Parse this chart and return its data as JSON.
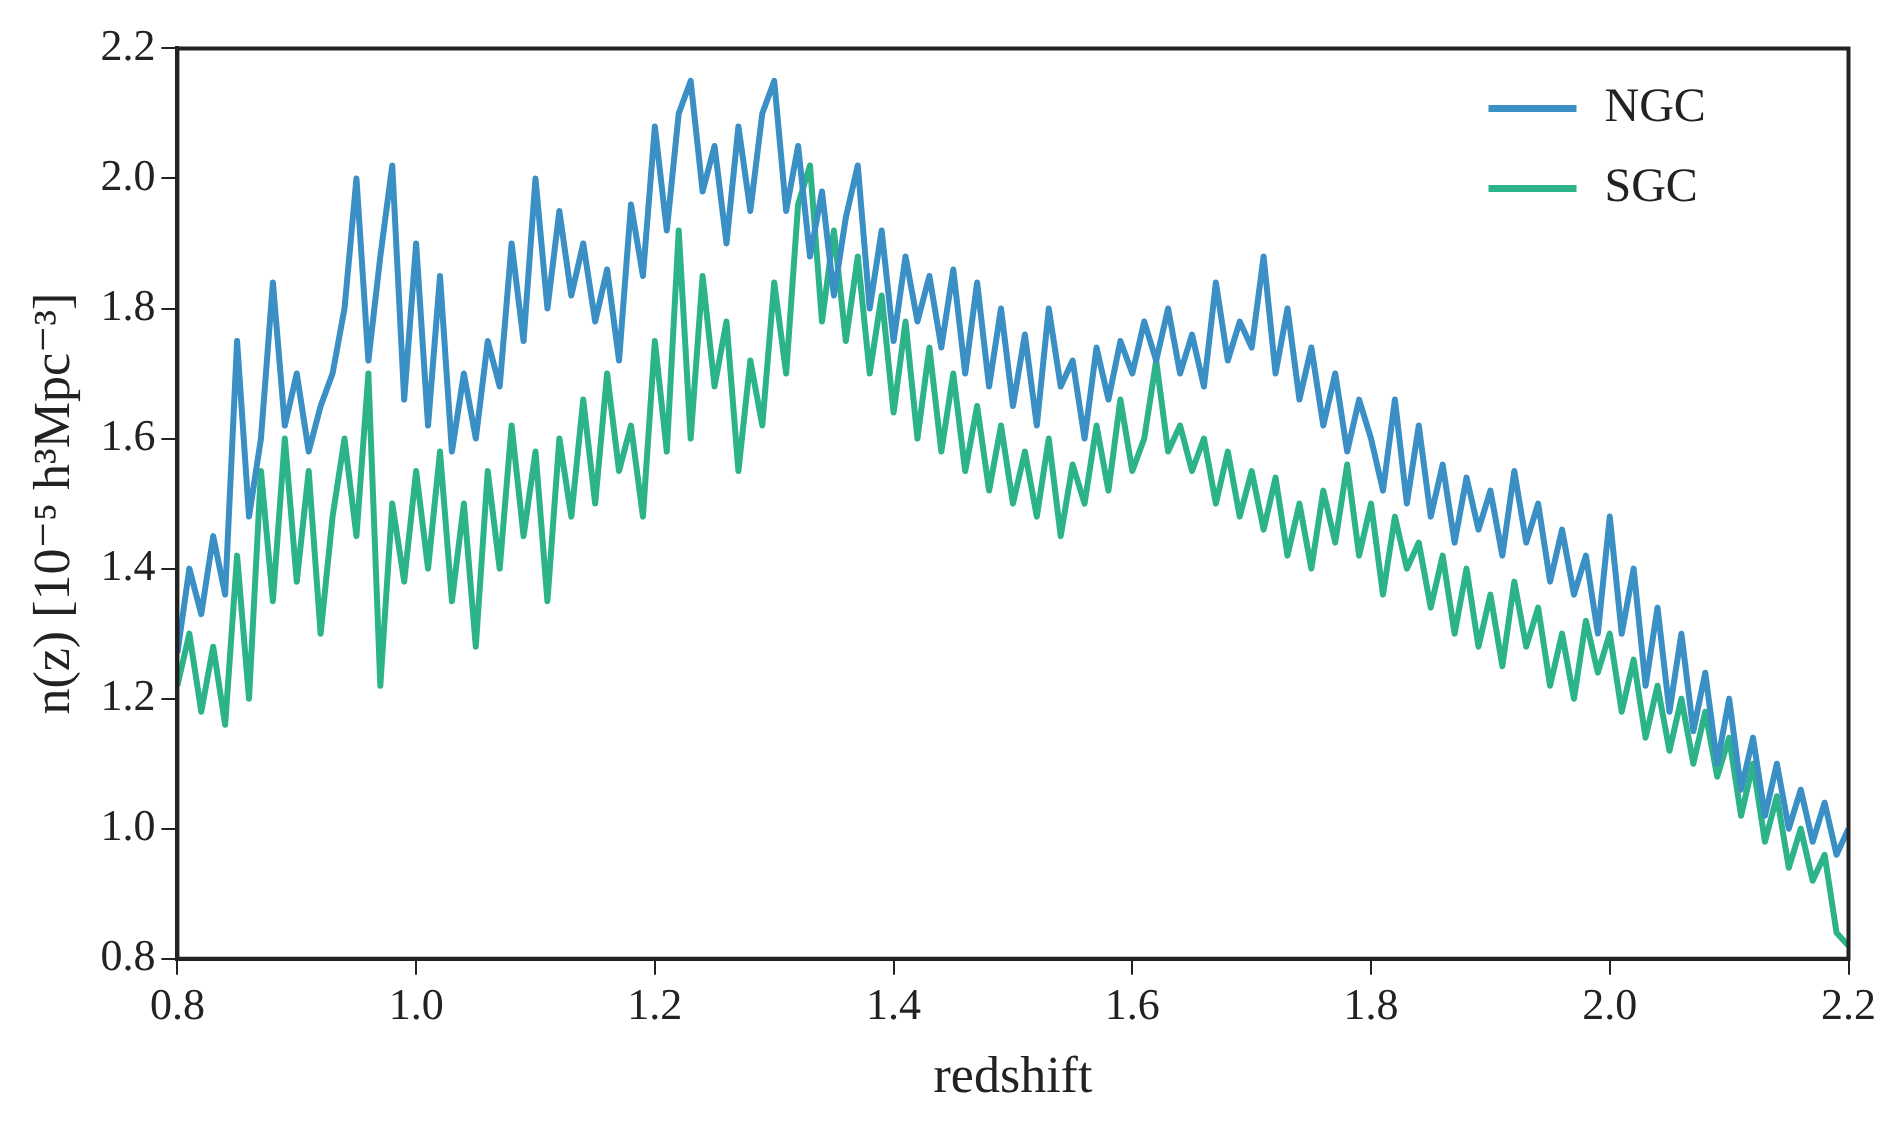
{
  "chart_data": {
    "type": "line",
    "xlabel": "redshift",
    "ylabel": "n(z) [10⁻⁵ h³Mpc⁻³]",
    "xlim": [
      0.8,
      2.2
    ],
    "xticks": [
      0.8,
      {
        "value": 1,
        "label": "1.0"
      },
      1.2,
      1.4,
      1.6,
      1.8,
      {
        "value": 2,
        "label": "2.0"
      },
      2.2
    ],
    "ylim": [
      0.8,
      2.2
    ],
    "yticks": [
      0.8,
      {
        "value": 1,
        "label": "1.0"
      },
      1.2,
      1.4,
      1.6,
      1.8,
      {
        "value": 2,
        "label": "2.0"
      },
      2.2
    ],
    "grid": false,
    "legend": "top right",
    "marker": "none",
    "line_style": "solid",
    "x": [
      0.8,
      0.81,
      0.82,
      0.83,
      0.84,
      0.85,
      0.86,
      0.87,
      0.88,
      0.89,
      0.9,
      0.91,
      0.92,
      0.93,
      0.94,
      0.95,
      0.96,
      0.97,
      0.98,
      0.99,
      1.0,
      1.01,
      1.02,
      1.03,
      1.04,
      1.05,
      1.06,
      1.07,
      1.08,
      1.09,
      1.1,
      1.11,
      1.12,
      1.13,
      1.14,
      1.15,
      1.16,
      1.17,
      1.18,
      1.19,
      1.2,
      1.21,
      1.22,
      1.23,
      1.24,
      1.25,
      1.26,
      1.27,
      1.28,
      1.29,
      1.3,
      1.31,
      1.32,
      1.33,
      1.34,
      1.35,
      1.36,
      1.37,
      1.38,
      1.39,
      1.4,
      1.41,
      1.42,
      1.43,
      1.44,
      1.45,
      1.46,
      1.47,
      1.48,
      1.49,
      1.5,
      1.51,
      1.52,
      1.53,
      1.54,
      1.55,
      1.56,
      1.57,
      1.58,
      1.59,
      1.6,
      1.61,
      1.62,
      1.63,
      1.64,
      1.65,
      1.66,
      1.67,
      1.68,
      1.69,
      1.7,
      1.71,
      1.72,
      1.73,
      1.74,
      1.75,
      1.76,
      1.77,
      1.78,
      1.79,
      1.8,
      1.81,
      1.82,
      1.83,
      1.84,
      1.85,
      1.86,
      1.87,
      1.88,
      1.89,
      1.9,
      1.91,
      1.92,
      1.93,
      1.94,
      1.95,
      1.96,
      1.97,
      1.98,
      1.99,
      2.0,
      2.01,
      2.02,
      2.03,
      2.04,
      2.05,
      2.06,
      2.07,
      2.08,
      2.09,
      2.1,
      2.11,
      2.12,
      2.13,
      2.14,
      2.15,
      2.16,
      2.17,
      2.18,
      2.19,
      2.2
    ],
    "series": [
      {
        "name": "NGC",
        "color": "#3a8fc4",
        "values": [
          1.27,
          1.4,
          1.33,
          1.45,
          1.36,
          1.75,
          1.48,
          1.6,
          1.84,
          1.62,
          1.7,
          1.58,
          1.65,
          1.7,
          1.8,
          2.0,
          1.72,
          1.88,
          2.02,
          1.66,
          1.9,
          1.62,
          1.85,
          1.58,
          1.7,
          1.6,
          1.75,
          1.68,
          1.9,
          1.75,
          2.0,
          1.8,
          1.95,
          1.82,
          1.9,
          1.78,
          1.86,
          1.72,
          1.96,
          1.85,
          2.08,
          1.92,
          2.1,
          2.15,
          1.98,
          2.05,
          1.9,
          2.08,
          1.95,
          2.1,
          2.15,
          1.95,
          2.05,
          1.88,
          1.98,
          1.82,
          1.94,
          2.02,
          1.8,
          1.92,
          1.75,
          1.88,
          1.78,
          1.85,
          1.74,
          1.86,
          1.7,
          1.84,
          1.68,
          1.8,
          1.65,
          1.76,
          1.62,
          1.8,
          1.68,
          1.72,
          1.6,
          1.74,
          1.66,
          1.75,
          1.7,
          1.78,
          1.72,
          1.8,
          1.7,
          1.76,
          1.68,
          1.84,
          1.72,
          1.78,
          1.74,
          1.88,
          1.7,
          1.8,
          1.66,
          1.74,
          1.62,
          1.7,
          1.58,
          1.66,
          1.6,
          1.52,
          1.66,
          1.5,
          1.62,
          1.48,
          1.56,
          1.44,
          1.54,
          1.46,
          1.52,
          1.42,
          1.55,
          1.44,
          1.5,
          1.38,
          1.46,
          1.36,
          1.42,
          1.3,
          1.48,
          1.3,
          1.4,
          1.22,
          1.34,
          1.18,
          1.3,
          1.15,
          1.24,
          1.1,
          1.2,
          1.06,
          1.14,
          1.02,
          1.1,
          1.0,
          1.06,
          0.98,
          1.04,
          0.96,
          1.0
        ]
      },
      {
        "name": "SGC",
        "color": "#2db38a",
        "values": [
          1.22,
          1.3,
          1.18,
          1.28,
          1.16,
          1.42,
          1.2,
          1.55,
          1.35,
          1.6,
          1.38,
          1.55,
          1.3,
          1.48,
          1.6,
          1.45,
          1.7,
          1.22,
          1.5,
          1.38,
          1.55,
          1.4,
          1.58,
          1.35,
          1.5,
          1.28,
          1.55,
          1.4,
          1.62,
          1.45,
          1.58,
          1.35,
          1.6,
          1.48,
          1.66,
          1.5,
          1.7,
          1.55,
          1.62,
          1.48,
          1.75,
          1.58,
          1.92,
          1.6,
          1.85,
          1.68,
          1.78,
          1.55,
          1.72,
          1.62,
          1.84,
          1.7,
          1.96,
          2.02,
          1.78,
          1.92,
          1.75,
          1.88,
          1.7,
          1.82,
          1.64,
          1.78,
          1.6,
          1.74,
          1.58,
          1.7,
          1.55,
          1.65,
          1.52,
          1.62,
          1.5,
          1.58,
          1.48,
          1.6,
          1.45,
          1.56,
          1.5,
          1.62,
          1.52,
          1.66,
          1.55,
          1.6,
          1.72,
          1.58,
          1.62,
          1.55,
          1.6,
          1.5,
          1.58,
          1.48,
          1.55,
          1.46,
          1.54,
          1.42,
          1.5,
          1.4,
          1.52,
          1.44,
          1.56,
          1.42,
          1.5,
          1.36,
          1.48,
          1.4,
          1.44,
          1.34,
          1.42,
          1.3,
          1.4,
          1.28,
          1.36,
          1.25,
          1.38,
          1.28,
          1.34,
          1.22,
          1.3,
          1.2,
          1.32,
          1.24,
          1.3,
          1.18,
          1.26,
          1.14,
          1.22,
          1.12,
          1.2,
          1.1,
          1.18,
          1.08,
          1.14,
          1.02,
          1.1,
          0.98,
          1.05,
          0.94,
          1.0,
          0.92,
          0.96,
          0.84,
          0.82
        ]
      }
    ]
  }
}
